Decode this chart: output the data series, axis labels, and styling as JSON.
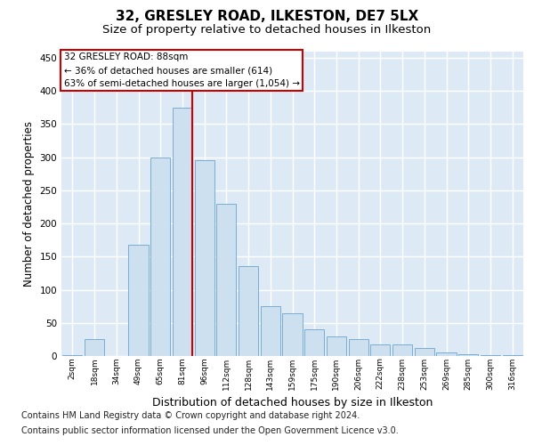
{
  "title1": "32, GRESLEY ROAD, ILKESTON, DE7 5LX",
  "title2": "Size of property relative to detached houses in Ilkeston",
  "xlabel": "Distribution of detached houses by size in Ilkeston",
  "ylabel": "Number of detached properties",
  "footnote1": "Contains HM Land Registry data © Crown copyright and database right 2024.",
  "footnote2": "Contains public sector information licensed under the Open Government Licence v3.0.",
  "bar_labels": [
    "2sqm",
    "18sqm",
    "34sqm",
    "49sqm",
    "65sqm",
    "81sqm",
    "96sqm",
    "112sqm",
    "128sqm",
    "143sqm",
    "159sqm",
    "175sqm",
    "190sqm",
    "206sqm",
    "222sqm",
    "238sqm",
    "253sqm",
    "269sqm",
    "285sqm",
    "300sqm",
    "316sqm"
  ],
  "bar_values": [
    2,
    25,
    0,
    168,
    300,
    375,
    295,
    230,
    135,
    75,
    65,
    40,
    30,
    25,
    18,
    18,
    12,
    5,
    3,
    2,
    1
  ],
  "bar_color": "#cce0f0",
  "bar_edgecolor": "#7aadd4",
  "line_color": "#cc0000",
  "annotation_line1": "32 GRESLEY ROAD: 88sqm",
  "annotation_line2": "← 36% of detached houses are smaller (614)",
  "annotation_line3": "63% of semi-detached houses are larger (1,054) →",
  "annotation_box_edgecolor": "#cc0000",
  "ylim_max": 460,
  "yticks": [
    0,
    50,
    100,
    150,
    200,
    250,
    300,
    350,
    400,
    450
  ],
  "bg_color": "#ddeaf5",
  "title1_fontsize": 11,
  "title2_fontsize": 9.5,
  "xlabel_fontsize": 9,
  "ylabel_fontsize": 8.5,
  "footnote_fontsize": 7
}
